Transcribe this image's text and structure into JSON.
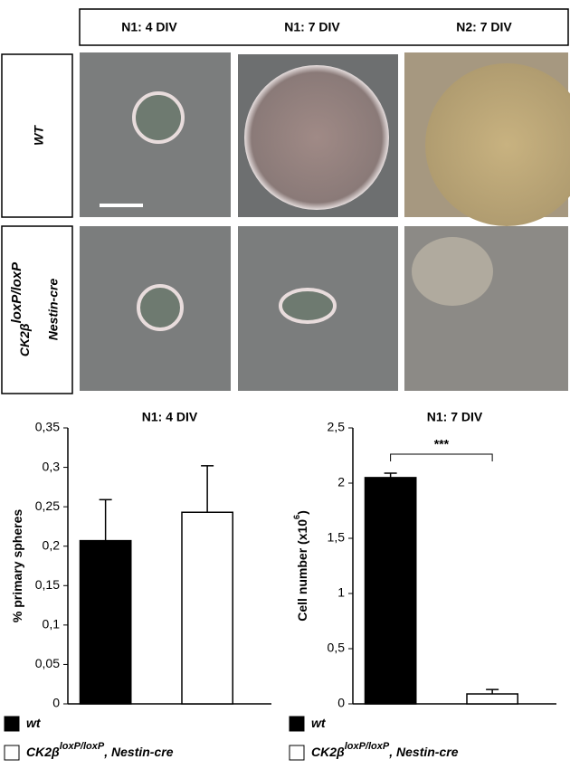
{
  "panels": {
    "columns": [
      "N1: 4 DIV",
      "N1: 7 DIV",
      "N2: 7 DIV"
    ],
    "rows": [
      {
        "label": "WT"
      },
      {
        "label": "CK2β",
        "label_sup": "loxP/loxP",
        "label_line2": "Nestin-cre"
      }
    ]
  },
  "chart_data": [
    {
      "type": "bar",
      "title": "N1: 4 DIV",
      "y_label": "% primary spheres",
      "ylim": [
        0,
        0.35
      ],
      "yticks": [
        0,
        {
          "value": 0.05,
          "label": "0,05"
        },
        {
          "value": 0.1,
          "label": "0,1"
        },
        {
          "value": 0.15,
          "label": "0,15"
        },
        {
          "value": 0.2,
          "label": "0,2"
        },
        {
          "value": 0.25,
          "label": "0,25"
        },
        {
          "value": 0.3,
          "label": "0,3"
        },
        {
          "value": 0.35,
          "label": "0,35"
        }
      ],
      "series": [
        {
          "name": "wt",
          "color": "#000000",
          "values": [
            0.207
          ],
          "errors": [
            0.052
          ]
        },
        {
          "name": "CK2β",
          "name_sup": "loxP/loxP",
          "name_suffix": ", Nestin-cre",
          "color": "#ffffff",
          "values": [
            0.243
          ],
          "errors": [
            0.059
          ]
        }
      ]
    },
    {
      "type": "bar",
      "title": "N1: 7 DIV",
      "y_label": "Cell number (x10",
      "y_label_sup": "6",
      "y_label_end": ")",
      "ylim": [
        0,
        2.5
      ],
      "yticks": [
        0,
        {
          "value": 0.5,
          "label": "0,5"
        },
        1,
        {
          "value": 1.5,
          "label": "1,5"
        },
        2,
        {
          "value": 2.5,
          "label": "2,5"
        }
      ],
      "annotation": "***",
      "series": [
        {
          "name": "wt",
          "color": "#000000",
          "values": [
            2.05
          ],
          "errors": [
            0.04
          ]
        },
        {
          "name": "CK2β",
          "name_sup": "loxP/loxP",
          "name_suffix": ", Nestin-cre",
          "color": "#ffffff",
          "values": [
            0.09
          ],
          "errors": [
            0.04
          ]
        }
      ]
    }
  ]
}
